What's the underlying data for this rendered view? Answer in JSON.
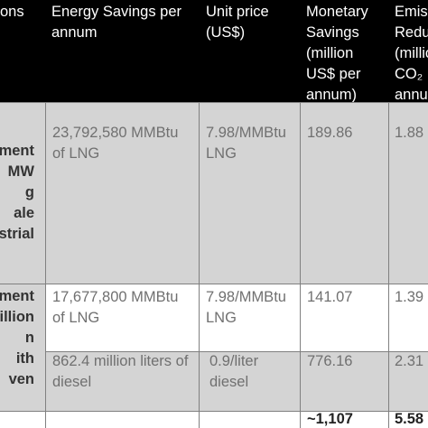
{
  "header": {
    "col1": "ons",
    "col2": "Energy Savings per\nannum",
    "col3": "Unit price\n(US$)",
    "col4": "Monetary\nSavings\n(million\nUS$ per\nannum)",
    "col5": "Emis\nRedu\n(millio\nCO₂\nannu"
  },
  "rows": [
    {
      "measure": "ment\nMW\ng\nale\nstrial",
      "energy": "23,792,580 MMBtu\nof LNG",
      "price": "7.98/MMBtu\nLNG",
      "monetary": "189.86",
      "emission": "1.88"
    },
    {
      "measure": "ment\nillion\nn\nith\nven",
      "energy": "17,677,800 MMBtu\nof LNG",
      "price": "7.98/MMBtu\nLNG",
      "monetary": "141.07",
      "emission": "1.39"
    },
    {
      "energy": "862.4 million liters of\ndiesel",
      "price": "0.9/liter\ndiesel",
      "monetary": "776.16",
      "emission": "2.31"
    }
  ],
  "totals": {
    "monetary": "~1,107",
    "emission": "5.58"
  }
}
